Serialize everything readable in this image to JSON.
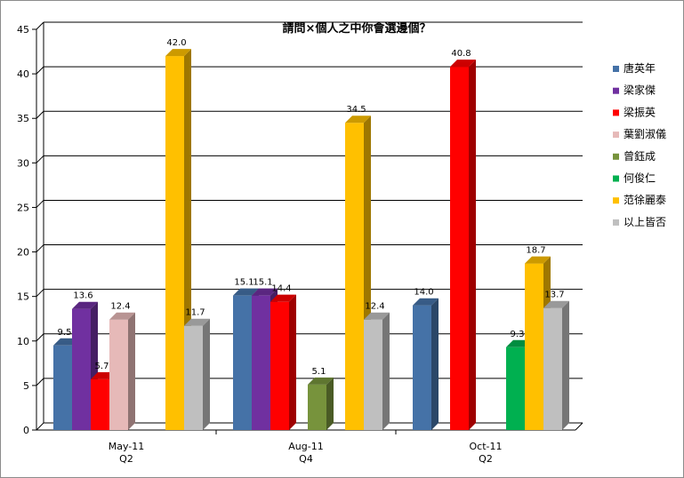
{
  "chart_data": {
    "type": "bar",
    "title": "請問×個人之中你會選邊個？",
    "xlabel": "",
    "ylabel": "",
    "ylim": [
      0,
      45
    ],
    "ystep": 5,
    "grid": true,
    "legend_position": "right",
    "categories": [
      {
        "label": "May-11",
        "sublabel": "Q2"
      },
      {
        "label": "Aug-11",
        "sublabel": "Q4"
      },
      {
        "label": "Oct-11",
        "sublabel": "Q2"
      }
    ],
    "series": [
      {
        "name": "唐英年",
        "color": "#4572a7",
        "values": [
          9.5,
          15.1,
          14.0
        ]
      },
      {
        "name": "梁家傑",
        "color": "#7030a0",
        "values": [
          13.6,
          15.1,
          null
        ]
      },
      {
        "name": "梁振英",
        "color": "#ff0000",
        "values": [
          5.7,
          14.4,
          40.8
        ]
      },
      {
        "name": "葉劉淑儀",
        "color": "#e6b9b8",
        "values": [
          12.4,
          null,
          null
        ]
      },
      {
        "name": "曾鈺成",
        "color": "#77933c",
        "values": [
          null,
          5.1,
          null
        ]
      },
      {
        "name": "何俊仁",
        "color": "#00b050",
        "values": [
          null,
          null,
          9.3
        ]
      },
      {
        "name": "范徐麗泰",
        "color": "#ffc000",
        "values": [
          42.0,
          34.5,
          18.7
        ]
      },
      {
        "name": "以上皆否",
        "color": "#bfbfbf",
        "values": [
          11.7,
          12.4,
          13.7
        ]
      }
    ]
  }
}
